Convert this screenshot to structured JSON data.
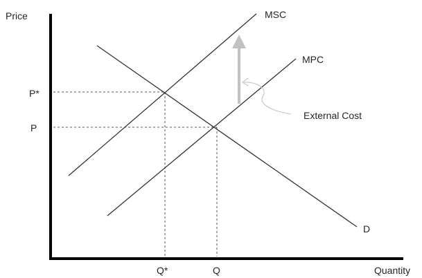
{
  "axes": {
    "y_label": "Price",
    "x_label": "Quantity"
  },
  "curves": {
    "msc_label": "MSC",
    "mpc_label": "MPC",
    "demand_label": "D"
  },
  "price_levels": {
    "p_star_label": "P*",
    "p_label": "P"
  },
  "quantity_levels": {
    "q_star_label": "Q*",
    "q_label": "Q"
  },
  "annotation": {
    "external_cost_label": "External Cost"
  },
  "colors": {
    "axis": "#000000",
    "curve": "#333333",
    "external_cost_arrow": "#c2c2c2"
  }
}
